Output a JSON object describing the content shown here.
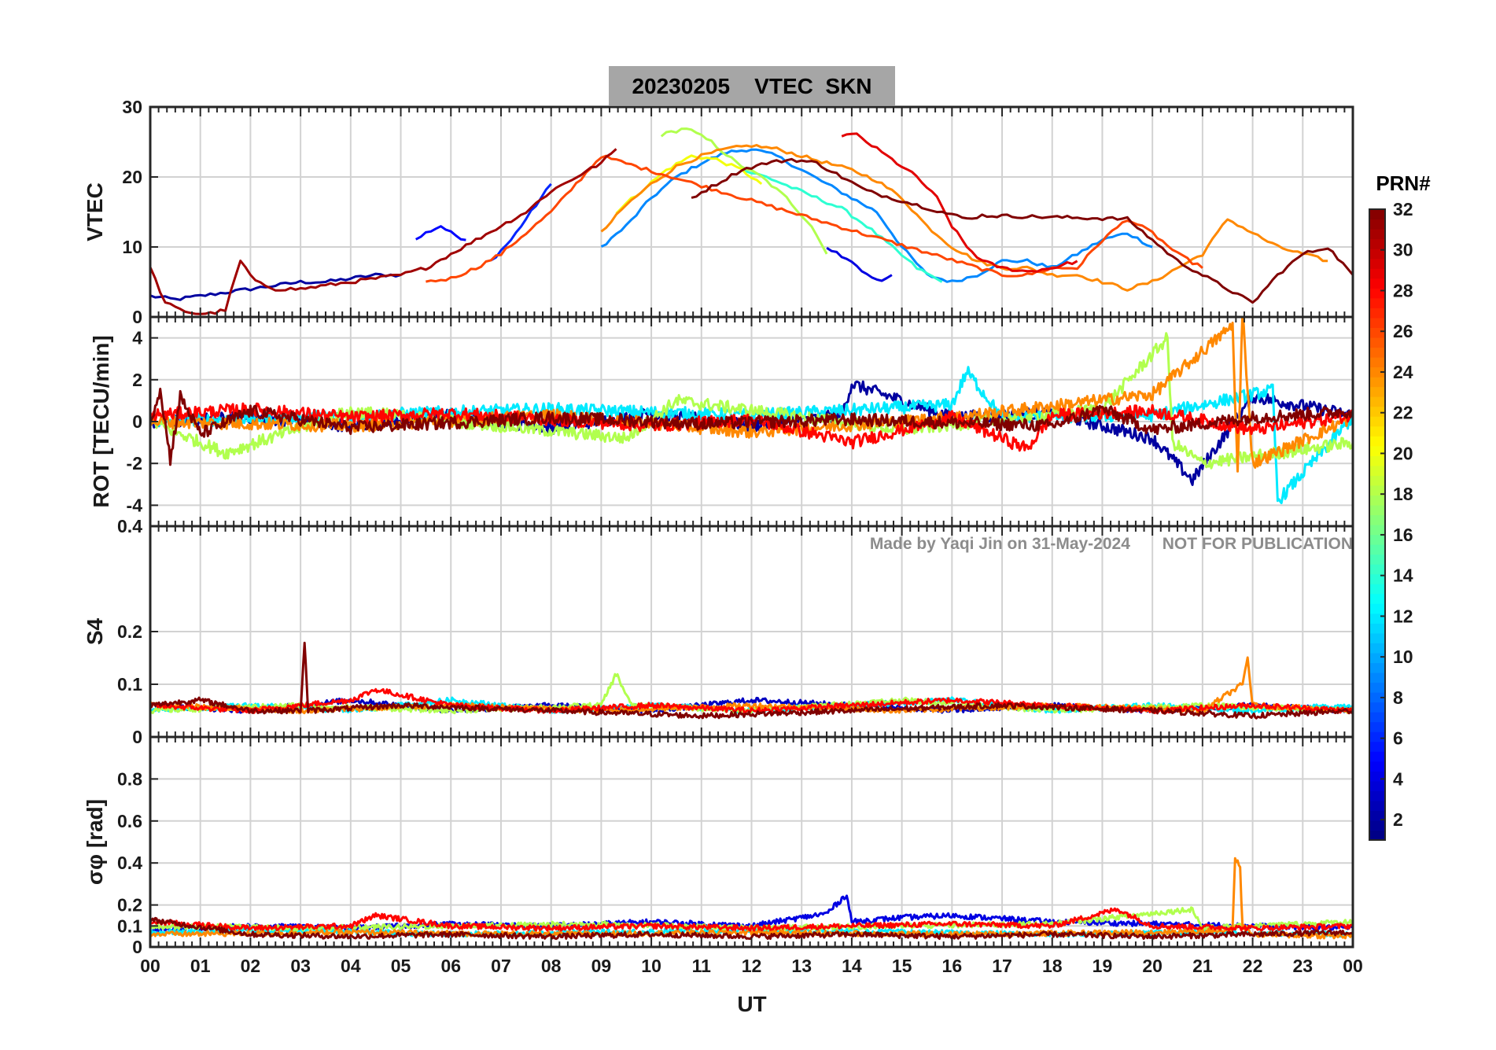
{
  "chart_data": [
    {
      "type": "line",
      "panel": "vtec",
      "title": "20230205    VTEC  SKN",
      "ylabel": "VTEC",
      "ylim": [
        0,
        30
      ],
      "yticks": [
        0,
        10,
        20,
        30
      ],
      "series": [
        {
          "name": "PRN 2",
          "prn": 2,
          "x": [
            0,
            0.5,
            1,
            1.5,
            2,
            2.5,
            3,
            3.5,
            4,
            4.5,
            5
          ],
          "values": [
            3,
            2.5,
            3,
            3.5,
            4,
            4.5,
            5,
            5,
            5.5,
            6,
            6
          ]
        },
        {
          "name": "PRN 5",
          "prn": 5,
          "x": [
            5.3,
            5.5,
            5.8,
            6.0,
            6.3
          ],
          "values": [
            11,
            12,
            13,
            12,
            11
          ]
        },
        {
          "name": "PRN 4",
          "prn": 4,
          "x": [
            13.5,
            14.0,
            14.3,
            14.6,
            14.8
          ],
          "values": [
            10,
            8,
            6,
            5,
            6
          ]
        },
        {
          "name": "PRN 6",
          "prn": 6,
          "x": [
            6.8,
            7.2,
            7.6,
            8.0
          ],
          "values": [
            8,
            11,
            15,
            19
          ]
        },
        {
          "name": "PRN 9",
          "prn": 9,
          "x": [
            9.0,
            9.5,
            10.0,
            10.5,
            11.0,
            11.5,
            12.0,
            12.5,
            13.0,
            13.5,
            14.0,
            14.5,
            15.0,
            15.5,
            16.0,
            16.5,
            17.0,
            17.5,
            18.0,
            18.5,
            19.0,
            19.5,
            20.0
          ],
          "values": [
            10,
            13,
            17,
            20,
            22,
            23.5,
            24,
            23,
            21,
            19,
            17,
            15,
            10,
            6,
            5,
            6,
            8,
            8,
            7,
            9,
            11,
            12,
            10
          ]
        },
        {
          "name": "PRN 14",
          "prn": 14,
          "x": [
            11.8,
            12.3,
            12.8,
            13.3,
            13.8,
            14.3,
            14.8,
            15.3,
            15.8
          ],
          "values": [
            21,
            20,
            18.5,
            17,
            15.5,
            13,
            10,
            7,
            5
          ]
        },
        {
          "name": "PRN 18",
          "prn": 18,
          "x": [
            10.2,
            10.7,
            11.2,
            11.7,
            12.2,
            12.7,
            13.2,
            13.5
          ],
          "values": [
            26,
            27,
            25,
            22,
            20,
            17,
            13,
            9
          ]
        },
        {
          "name": "PRN 20",
          "prn": 20,
          "x": [
            9.3,
            9.8,
            10.3,
            10.8,
            11.3,
            11.8,
            12.2
          ],
          "values": [
            15,
            18,
            21,
            23,
            22.5,
            21,
            19
          ]
        },
        {
          "name": "PRN 24",
          "prn": 24,
          "x": [
            9.0,
            9.5,
            10.0,
            10.5,
            11.0,
            11.5,
            12.0,
            12.5,
            13.0,
            13.5,
            14.0,
            14.5,
            15.0,
            15.5,
            16.0,
            16.5,
            17.0,
            17.5,
            18.0,
            18.5,
            19.0,
            19.5,
            20.0,
            20.5,
            21.0,
            21.5,
            22.0,
            22.5,
            23.0,
            23.5
          ],
          "values": [
            12,
            16,
            19,
            21.5,
            23,
            24,
            24.5,
            24,
            23,
            22,
            21,
            19.5,
            17,
            13,
            10,
            8,
            7,
            7,
            6,
            6,
            5,
            4,
            5,
            7,
            9,
            14,
            12,
            10,
            9,
            8
          ]
        },
        {
          "name": "PRN 26",
          "prn": 26,
          "x": [
            5.5,
            6.0,
            6.5,
            7.0,
            7.5,
            8.0,
            8.5,
            9.0,
            17.0,
            17.5,
            18.0,
            18.5,
            19.0,
            19.5,
            20.0,
            20.5,
            21.0
          ],
          "values": [
            5,
            5.5,
            7,
            9,
            12,
            15,
            19,
            23,
            6,
            6,
            7,
            7,
            11,
            14,
            12,
            9,
            7
          ]
        },
        {
          "name": "PRN 29",
          "prn": 29,
          "x": [
            13.8,
            14.1,
            14.5,
            14.9,
            15.3,
            15.7,
            16.0,
            16.3,
            16.6,
            17.0,
            17.5,
            18.0,
            18.5
          ],
          "values": [
            26,
            26,
            24,
            22,
            20,
            17,
            13,
            10,
            8,
            7,
            6.5,
            7,
            8
          ]
        },
        {
          "name": "PRN 31",
          "prn": 31,
          "x": [
            0,
            0.3,
            0.6,
            0.9,
            1.2,
            1.5,
            1.8,
            2.1,
            2.5,
            3.0,
            3.5,
            4.0,
            4.5,
            5.0,
            5.5,
            6.0,
            6.5,
            7.0,
            7.5,
            8.0,
            8.5,
            9.0,
            9.3
          ],
          "values": [
            7,
            2,
            1,
            0.5,
            0.5,
            1,
            8,
            5,
            4,
            4,
            4.5,
            5,
            5.5,
            6,
            7,
            9,
            11,
            13,
            15,
            18,
            20,
            22,
            24
          ]
        },
        {
          "name": "PRN 32",
          "prn": 32,
          "x": [
            10.8,
            11.3,
            11.8,
            12.3,
            12.8,
            13.3,
            13.8,
            14.3,
            14.8,
            15.3,
            15.8,
            16.3,
            16.6,
            19.5,
            20.0,
            20.5,
            21.0,
            21.5,
            22.0,
            22.5,
            23.0,
            23.5,
            24.0
          ],
          "values": [
            17,
            19,
            21,
            22,
            22.5,
            22,
            20,
            18,
            17,
            16,
            15,
            14,
            14.5,
            14,
            11,
            8,
            6,
            4,
            2,
            6,
            9,
            10,
            6
          ]
        }
      ]
    },
    {
      "type": "line",
      "panel": "rot",
      "ylabel": "ROT [TECU/min]",
      "ylim": [
        -5,
        5
      ],
      "yticks": [
        -4,
        -2,
        0,
        2,
        4
      ],
      "series": [
        {
          "name": "PRN 2",
          "prn": 2,
          "x": [
            0,
            2,
            4,
            6,
            8,
            10,
            12,
            13.8,
            14.0,
            16,
            18,
            20,
            20.8,
            22,
            24
          ],
          "values": [
            0,
            0.2,
            -0.2,
            0.3,
            -0.3,
            0.4,
            -0.2,
            0.3,
            1.8,
            0.2,
            0.4,
            -0.8,
            -2.8,
            1.2,
            0.3
          ]
        },
        {
          "name": "PRN 12",
          "prn": 12,
          "x": [
            0,
            4,
            8,
            12,
            16,
            16.3,
            17,
            20,
            22.4,
            22.5,
            24
          ],
          "values": [
            0,
            0.3,
            0.6,
            0.3,
            0.8,
            2.4,
            0.2,
            0.3,
            1.5,
            -3.8,
            0.2
          ]
        },
        {
          "name": "PRN 18",
          "prn": 18,
          "x": [
            0,
            1.5,
            4,
            9.5,
            10.5,
            15,
            19,
            20.3,
            20.4,
            21,
            24
          ],
          "values": [
            0,
            -1.5,
            0.5,
            -0.8,
            1.0,
            -0.4,
            0.6,
            4.0,
            -1.0,
            -2.0,
            -1.0
          ]
        },
        {
          "name": "PRN 24",
          "prn": 24,
          "x": [
            0,
            4,
            8,
            12,
            16,
            20,
            21.6,
            21.7,
            21.8,
            21.9,
            22,
            24
          ],
          "values": [
            0,
            -0.2,
            0.3,
            -0.5,
            0.2,
            1.3,
            4.6,
            -2.5,
            5.2,
            1.6,
            -2.0,
            0.2
          ]
        },
        {
          "name": "PRN 28",
          "prn": 28,
          "x": [
            0,
            2,
            4,
            6,
            8,
            10,
            12,
            14,
            16,
            17.5,
            18,
            20,
            22,
            24
          ],
          "values": [
            0.3,
            0.6,
            0.2,
            0.4,
            0.1,
            -0.2,
            0.1,
            -1.0,
            0.2,
            -1.3,
            0.3,
            0.5,
            -0.4,
            0.3
          ]
        },
        {
          "name": "PRN 32",
          "prn": 32,
          "x": [
            0,
            0.2,
            0.4,
            0.6,
            1,
            2,
            4,
            8,
            11,
            14,
            18,
            19,
            20,
            22,
            24
          ],
          "values": [
            0,
            1.6,
            -1.8,
            1.2,
            -0.6,
            0.5,
            -0.3,
            0.2,
            -0.1,
            0.1,
            -0.2,
            0.6,
            -0.4,
            0.2,
            0.5
          ]
        }
      ]
    },
    {
      "type": "line",
      "panel": "s4",
      "ylabel": "S4",
      "ylim": [
        0,
        0.4
      ],
      "yticks": [
        0,
        0.1,
        0.2,
        0.4
      ],
      "series": [
        {
          "name": "PRN 3",
          "prn": 3,
          "x": [
            0,
            2,
            4,
            6,
            8,
            10,
            12,
            14,
            16,
            18,
            20,
            22,
            24
          ],
          "values": [
            0.06,
            0.05,
            0.07,
            0.05,
            0.06,
            0.05,
            0.07,
            0.06,
            0.05,
            0.06,
            0.05,
            0.06,
            0.05
          ]
        },
        {
          "name": "PRN 12",
          "prn": 12,
          "x": [
            0,
            2,
            4,
            6,
            8,
            10,
            12,
            14,
            16,
            18,
            20,
            22,
            24
          ],
          "values": [
            0.05,
            0.06,
            0.05,
            0.07,
            0.05,
            0.06,
            0.05,
            0.06,
            0.07,
            0.05,
            0.06,
            0.05,
            0.06
          ]
        },
        {
          "name": "PRN 18",
          "prn": 18,
          "x": [
            0,
            3,
            6,
            9,
            9.3,
            9.6,
            12,
            15,
            18,
            21,
            24
          ],
          "values": [
            0.05,
            0.06,
            0.05,
            0.06,
            0.12,
            0.06,
            0.05,
            0.07,
            0.05,
            0.06,
            0.05
          ]
        },
        {
          "name": "PRN 24",
          "prn": 24,
          "x": [
            0,
            3,
            6,
            9,
            12,
            15,
            18,
            21,
            21.8,
            21.9,
            22,
            24
          ],
          "values": [
            0.06,
            0.05,
            0.06,
            0.05,
            0.06,
            0.05,
            0.06,
            0.05,
            0.1,
            0.15,
            0.06,
            0.05
          ]
        },
        {
          "name": "PRN 28",
          "prn": 28,
          "x": [
            0,
            2,
            4,
            4.5,
            6,
            8,
            10,
            12,
            14,
            16,
            18,
            20,
            22,
            24
          ],
          "values": [
            0.06,
            0.05,
            0.07,
            0.09,
            0.06,
            0.05,
            0.06,
            0.05,
            0.06,
            0.07,
            0.06,
            0.05,
            0.06,
            0.05
          ]
        },
        {
          "name": "PRN 32",
          "prn": 32,
          "x": [
            0,
            1,
            2,
            3.0,
            3.08,
            3.15,
            5,
            8,
            11,
            14,
            17,
            20,
            22,
            24
          ],
          "values": [
            0.06,
            0.07,
            0.05,
            0.05,
            0.18,
            0.05,
            0.06,
            0.05,
            0.04,
            0.05,
            0.06,
            0.05,
            0.04,
            0.05
          ]
        }
      ]
    },
    {
      "type": "line",
      "panel": "sigma_phi",
      "ylabel": "σφ [rad]",
      "ylim": [
        0,
        1
      ],
      "yticks": [
        0,
        0.1,
        0.2,
        0.4,
        0.6,
        0.8
      ],
      "xlabel": "UT",
      "xlim": [
        0,
        24
      ],
      "xtick_labels": [
        "00",
        "01",
        "02",
        "03",
        "04",
        "05",
        "06",
        "07",
        "08",
        "09",
        "10",
        "11",
        "12",
        "13",
        "14",
        "15",
        "16",
        "17",
        "18",
        "19",
        "20",
        "21",
        "22",
        "23",
        "00"
      ],
      "series": [
        {
          "name": "PRN 4",
          "prn": 4,
          "x": [
            0,
            2,
            4,
            6,
            8,
            10,
            12,
            13.5,
            13.9,
            14.0,
            15,
            16,
            18,
            20,
            22,
            24
          ],
          "values": [
            0.08,
            0.1,
            0.09,
            0.11,
            0.1,
            0.12,
            0.1,
            0.16,
            0.25,
            0.12,
            0.14,
            0.15,
            0.12,
            0.11,
            0.1,
            0.09
          ]
        },
        {
          "name": "PRN 12",
          "prn": 12,
          "x": [
            0,
            3,
            6,
            9,
            12,
            15,
            18,
            21,
            24
          ],
          "values": [
            0.07,
            0.08,
            0.06,
            0.07,
            0.08,
            0.07,
            0.06,
            0.07,
            0.06
          ]
        },
        {
          "name": "PRN 18",
          "prn": 18,
          "x": [
            0,
            3,
            6,
            9,
            12,
            15,
            18,
            20.8,
            21,
            24
          ],
          "values": [
            0.1,
            0.09,
            0.1,
            0.11,
            0.09,
            0.1,
            0.11,
            0.18,
            0.09,
            0.12
          ]
        },
        {
          "name": "PRN 24",
          "prn": 24,
          "x": [
            0,
            4,
            8,
            12,
            16,
            20,
            21.6,
            21.65,
            21.75,
            21.8,
            22,
            24
          ],
          "values": [
            0.06,
            0.07,
            0.06,
            0.07,
            0.06,
            0.07,
            0.08,
            0.43,
            0.37,
            0.1,
            0.06,
            0.05
          ]
        },
        {
          "name": "PRN 28",
          "prn": 28,
          "x": [
            0,
            2,
            4,
            4.5,
            6,
            8,
            10,
            12,
            14,
            16,
            18,
            19.3,
            20,
            22,
            24
          ],
          "values": [
            0.12,
            0.09,
            0.1,
            0.15,
            0.1,
            0.09,
            0.1,
            0.09,
            0.1,
            0.11,
            0.1,
            0.18,
            0.1,
            0.09,
            0.1
          ]
        },
        {
          "name": "PRN 32",
          "prn": 32,
          "x": [
            0,
            2,
            4,
            6,
            8,
            10,
            12,
            14,
            16,
            18,
            20,
            22,
            24
          ],
          "values": [
            0.13,
            0.06,
            0.05,
            0.06,
            0.05,
            0.06,
            0.05,
            0.06,
            0.05,
            0.06,
            0.05,
            0.06,
            0.07
          ]
        }
      ]
    }
  ],
  "watermark": "Made by Yaqi Jin on 31-May-2024       NOT FOR PUBLICATION",
  "colorbar": {
    "title": "PRN#",
    "range": [
      1,
      32
    ],
    "tick_labels": [
      "2",
      "4",
      "6",
      "8",
      "10",
      "12",
      "14",
      "16",
      "18",
      "20",
      "22",
      "24",
      "26",
      "28",
      "30",
      "32"
    ],
    "colormap": "jet"
  }
}
